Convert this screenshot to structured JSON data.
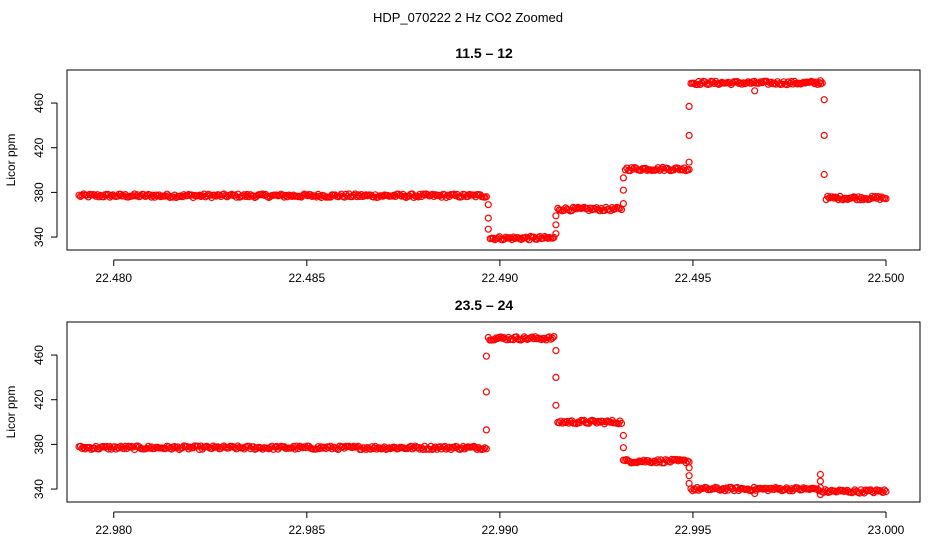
{
  "figure": {
    "title": "HDP_070222  2 Hz CO2 Zoomed"
  },
  "colors": {
    "points": "#ff0000",
    "axis": "#000000"
  },
  "chart_data": [
    {
      "type": "scatter",
      "title": "11.5 – 12",
      "xlabel": "",
      "ylabel": "Licor ppm",
      "xlim": [
        22.4791,
        22.5
      ],
      "ylim": [
        332,
        486
      ],
      "xticks": [
        "22.480",
        "22.485",
        "22.490",
        "22.495",
        "22.500"
      ],
      "xtick_values": [
        22.48,
        22.485,
        22.49,
        22.495,
        22.5
      ],
      "yticks": [
        "340",
        "380",
        "420",
        "460"
      ],
      "ytick_values": [
        340,
        380,
        420,
        460
      ],
      "grid": false,
      "series": [
        {
          "segments": [
            {
              "x": [
                22.4791,
                22.48965
              ],
              "y": 377
            },
            {
              "x": [
                22.48975,
                22.4914
              ],
              "y": 339
            },
            {
              "x": [
                22.4915,
                22.49315
              ],
              "y": 365
            },
            {
              "x": [
                22.49325,
                22.4949
              ],
              "y": 401
            },
            {
              "x": [
                22.49495,
                22.49835
              ],
              "y": 478
            },
            {
              "x": [
                22.49845,
                22.5
              ],
              "y": 375
            }
          ],
          "transitions": [
            {
              "x": 22.4897,
              "y": [
                369,
                357,
                347
              ]
            },
            {
              "x": 22.49145,
              "y": [
                343,
                351,
                359
              ]
            },
            {
              "x": 22.4932,
              "y": [
                370,
                382,
                393
              ]
            },
            {
              "x": 22.4949,
              "y": [
                407,
                431,
                457
              ]
            },
            {
              "x": 22.4984,
              "y": [
                463,
                431,
                396
              ]
            }
          ],
          "outliers": [
            {
              "x": 22.4966,
              "y": 471
            },
            {
              "x": 22.4983,
              "y": 480
            }
          ]
        }
      ]
    },
    {
      "type": "scatter",
      "title": "23.5 – 24",
      "xlabel": "",
      "ylabel": "Licor ppm",
      "xlim": [
        22.9791,
        23.0
      ],
      "ylim": [
        332,
        486
      ],
      "xticks": [
        "22.980",
        "22.985",
        "22.990",
        "22.995",
        "23.000"
      ],
      "xtick_values": [
        22.98,
        22.985,
        22.99,
        22.995,
        23.0
      ],
      "yticks": [
        "340",
        "380",
        "420",
        "460"
      ],
      "ytick_values": [
        340,
        380,
        420,
        460
      ],
      "grid": false,
      "series": [
        {
          "segments": [
            {
              "x": [
                22.9791,
                22.98965
              ],
              "y": 377
            },
            {
              "x": [
                22.9897,
                22.9914
              ],
              "y": 475
            },
            {
              "x": [
                22.9915,
                22.99315
              ],
              "y": 400
            },
            {
              "x": [
                22.9932,
                22.9949
              ],
              "y": 365
            },
            {
              "x": [
                22.99495,
                22.9983
              ],
              "y": 340
            },
            {
              "x": [
                22.99835,
                23.0
              ],
              "y": 338
            }
          ],
          "transitions": [
            {
              "x": 22.98965,
              "y": [
                393,
                427,
                459
              ]
            },
            {
              "x": 22.99145,
              "y": [
                464,
                440,
                415
              ]
            },
            {
              "x": 22.9932,
              "y": [
                388,
                377
              ]
            },
            {
              "x": 22.9949,
              "y": [
                359,
                352,
                345
              ]
            }
          ],
          "outliers": [
            {
              "x": 22.9966,
              "y": 336
            },
            {
              "x": 22.9983,
              "y": 353
            },
            {
              "x": 22.9983,
              "y": 347
            },
            {
              "x": 22.9983,
              "y": 335
            }
          ]
        }
      ]
    }
  ]
}
